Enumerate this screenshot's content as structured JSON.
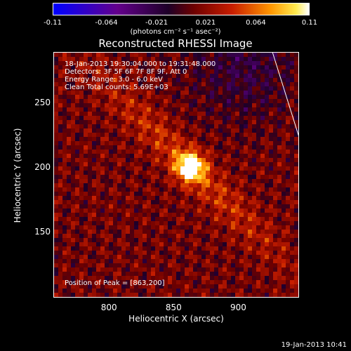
{
  "colorbar": {
    "ticks": [
      {
        "value": -0.11,
        "label": "-0.11"
      },
      {
        "value": -0.064,
        "label": "-0.064"
      },
      {
        "value": -0.021,
        "label": "-0.021"
      },
      {
        "value": 0.021,
        "label": "0.021"
      },
      {
        "value": 0.064,
        "label": "0.064"
      },
      {
        "value": 0.11,
        "label": "0.11"
      }
    ],
    "units": "(photons cm⁻² s⁻¹ asec⁻²)"
  },
  "chart_data": {
    "type": "heatmap",
    "title": "Reconstructed RHESSI Image",
    "xlabel": "Heliocentric X (arcsec)",
    "ylabel": "Heliocentric Y (arcsec)",
    "xlim": [
      757,
      947
    ],
    "ylim": [
      99,
      289
    ],
    "clim": [
      -0.11,
      0.11
    ],
    "colormap": "blue-purple-red-yellow-white",
    "xticks": [
      {
        "value": 800,
        "label": "800"
      },
      {
        "value": 850,
        "label": "850"
      },
      {
        "value": 900,
        "label": "900"
      }
    ],
    "yticks": [
      {
        "value": 150,
        "label": "150"
      },
      {
        "value": 200,
        "label": "200"
      },
      {
        "value": 250,
        "label": "250"
      }
    ],
    "peak": {
      "x": 863,
      "y": 200,
      "value": 0.11
    },
    "limb_line": [
      {
        "x": 926,
        "y": 289
      },
      {
        "x": 947,
        "y": 222
      }
    ],
    "annotations": [
      "18-Jan-2013 19:30:04.000 to 19:31:48.000",
      "Detectors: 3F 5F 6F 7F 8F 9F, Att 0",
      "Energy Range: 3.0 - 6.0 keV",
      "Clean    Total counts: 5.69E+03"
    ],
    "peak_label": "Position of Peak = [863,200]"
  },
  "footer": {
    "timestamp": "19-Jan-2013 10:41"
  }
}
